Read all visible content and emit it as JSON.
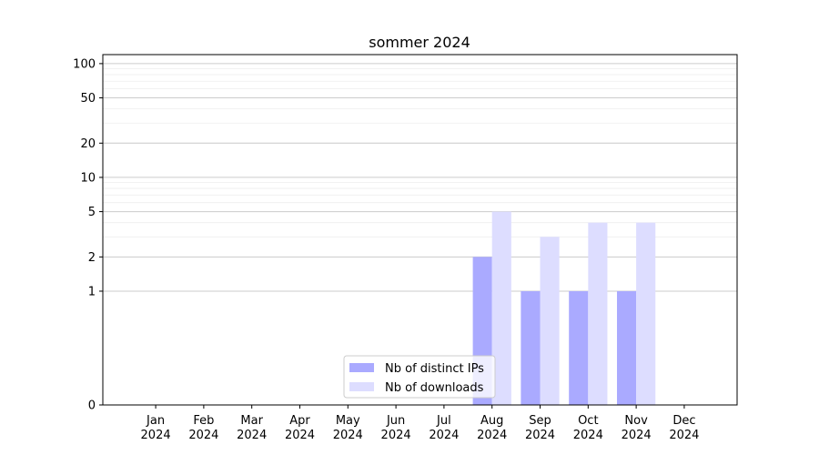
{
  "chart_data": {
    "type": "bar",
    "title": "sommer 2024",
    "xlabel": "",
    "ylabel": "",
    "yscale": "symlog",
    "ylim": [
      0,
      120
    ],
    "yticks": [
      0,
      1,
      2,
      5,
      10,
      20,
      50,
      100
    ],
    "grid": true,
    "legend_position": "bottom-center",
    "categories": [
      [
        "Jan",
        "2024"
      ],
      [
        "Feb",
        "2024"
      ],
      [
        "Mar",
        "2024"
      ],
      [
        "Apr",
        "2024"
      ],
      [
        "May",
        "2024"
      ],
      [
        "Jun",
        "2024"
      ],
      [
        "Jul",
        "2024"
      ],
      [
        "Aug",
        "2024"
      ],
      [
        "Sep",
        "2024"
      ],
      [
        "Oct",
        "2024"
      ],
      [
        "Nov",
        "2024"
      ],
      [
        "Dec",
        "2024"
      ]
    ],
    "series": [
      {
        "name": "Nb of distinct IPs",
        "color": "#aaaaff",
        "values": [
          0,
          0,
          0,
          0,
          0,
          0,
          0,
          2,
          1,
          1,
          1,
          0
        ]
      },
      {
        "name": "Nb of downloads",
        "color": "#ddddff",
        "values": [
          0,
          0,
          0,
          0,
          0,
          0,
          0,
          5,
          3,
          4,
          4,
          0
        ]
      }
    ]
  }
}
